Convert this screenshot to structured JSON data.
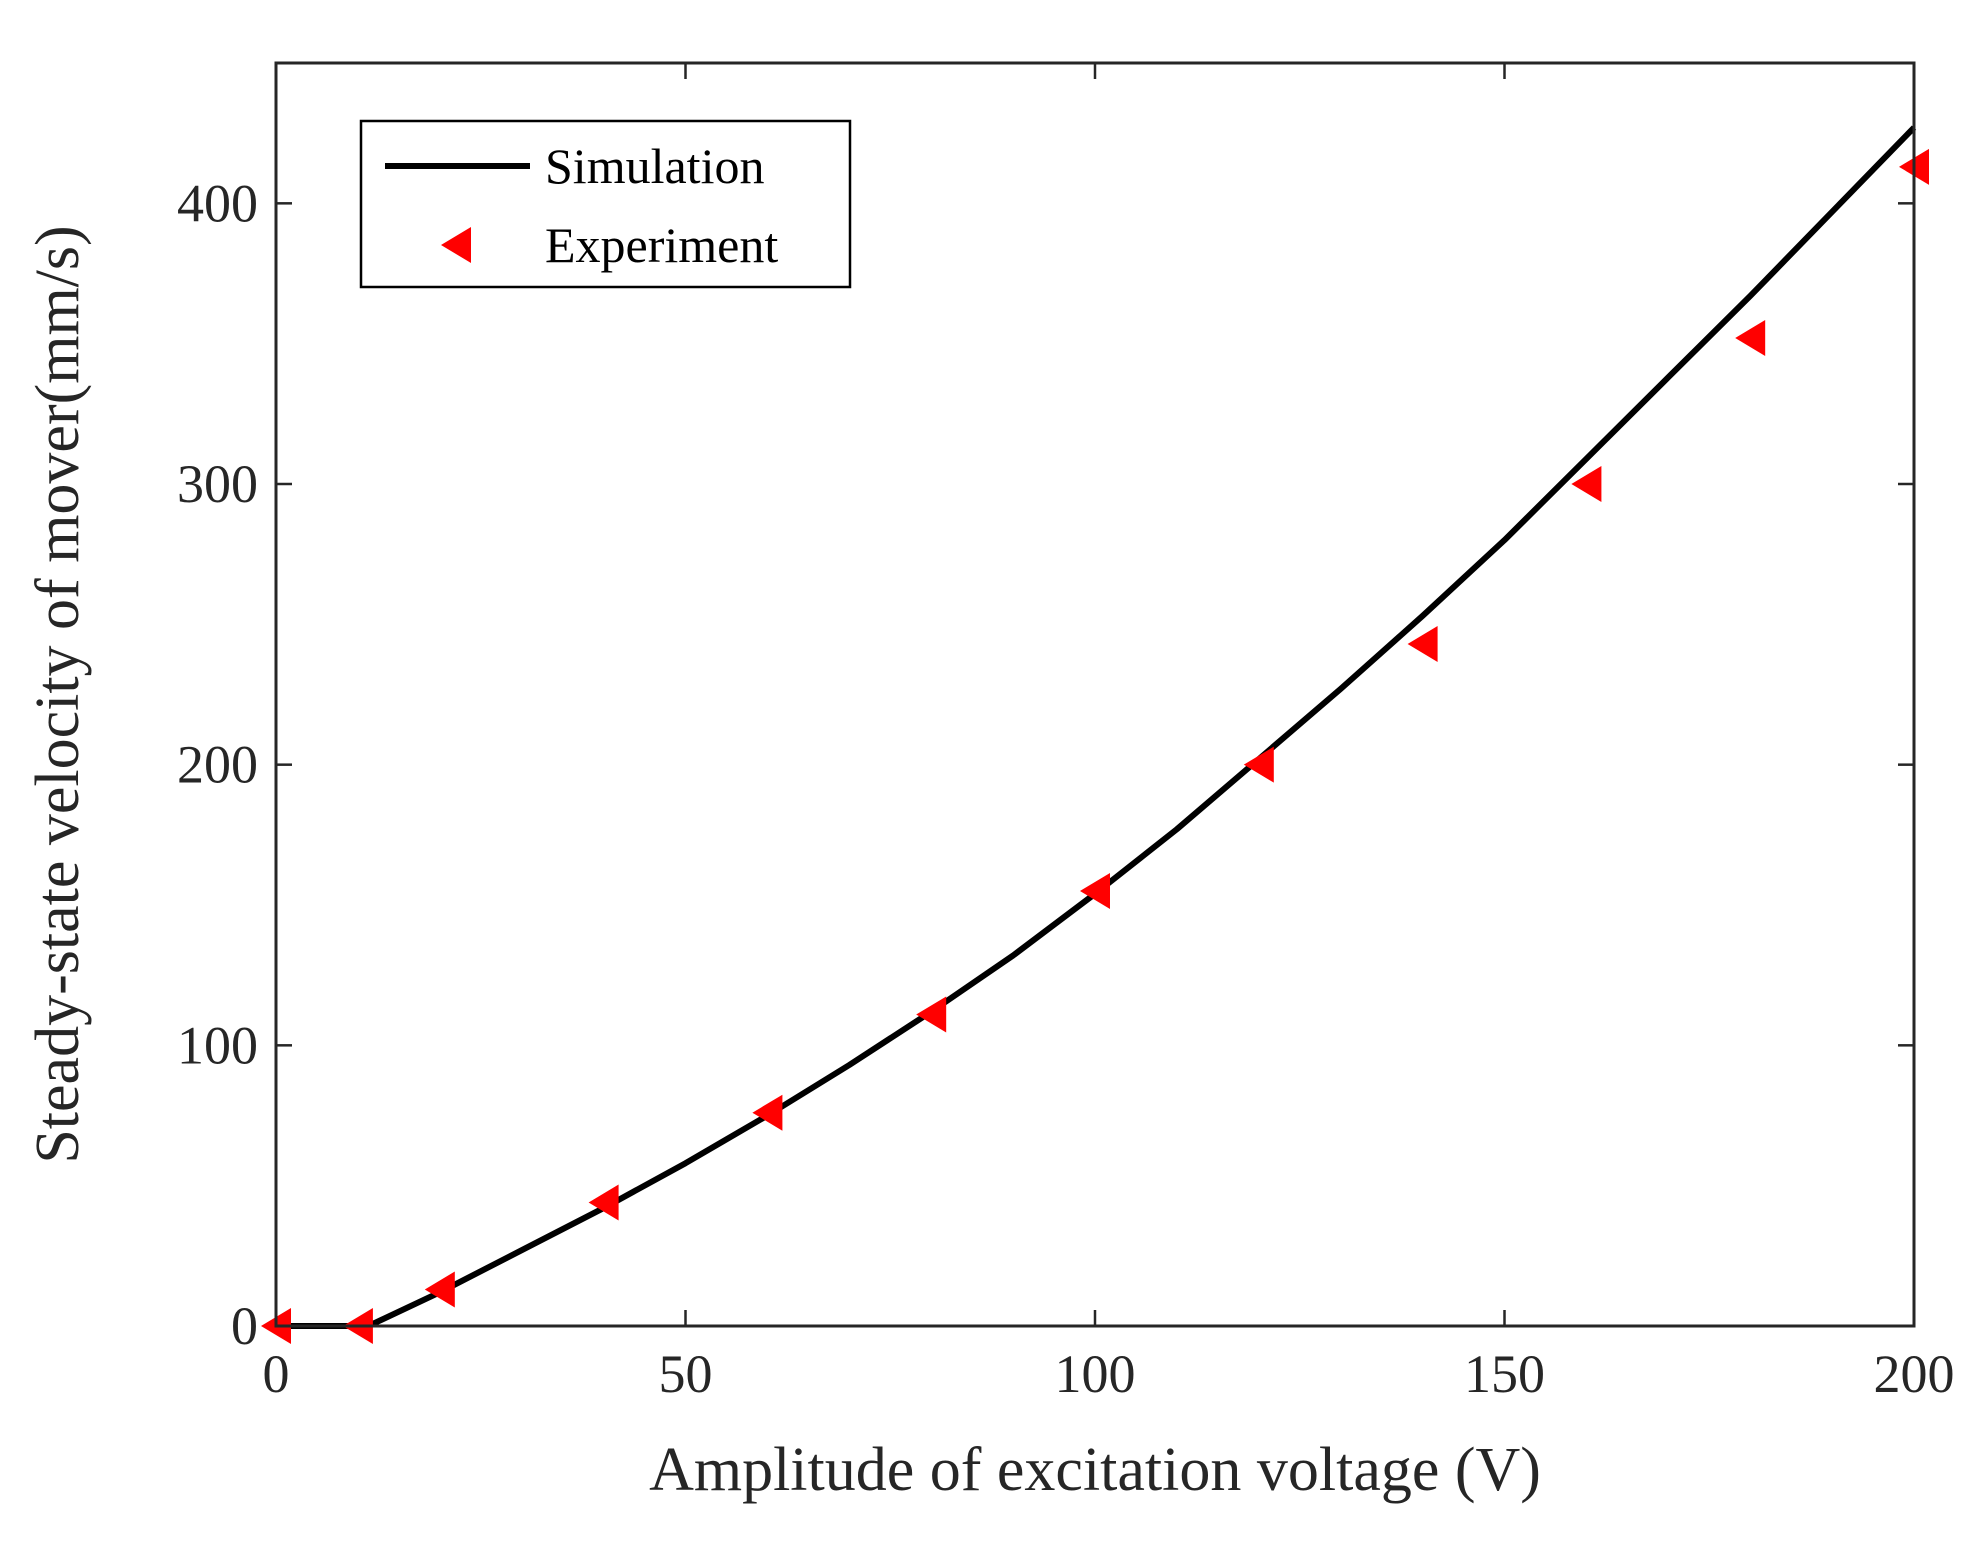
{
  "chart_data": {
    "type": "line",
    "title": "",
    "xlabel": "Amplitude of excitation voltage (V)",
    "ylabel": "Steady-state velocity of mover(mm/s)",
    "xlim": [
      0,
      200
    ],
    "ylim": [
      0,
      450
    ],
    "xticks": [
      0,
      50,
      100,
      150,
      200
    ],
    "yticks": [
      0,
      100,
      200,
      300,
      400
    ],
    "legend_position": "top-left",
    "series": [
      {
        "name": "Simulation",
        "style": "line",
        "color": "#000000",
        "x": [
          0,
          10,
          12,
          20,
          30,
          40,
          50,
          60,
          70,
          80,
          90,
          100,
          110,
          120,
          130,
          140,
          150,
          160,
          170,
          180,
          190,
          200
        ],
        "y": [
          0,
          0,
          1,
          12,
          27,
          42,
          58,
          75,
          93,
          112,
          132,
          154,
          177,
          202,
          227,
          253,
          280,
          309,
          338,
          367,
          397,
          427
        ]
      },
      {
        "name": "Experiment",
        "style": "marker-triangle-left",
        "color": "#ff0000",
        "x": [
          0,
          10,
          20,
          40,
          60,
          80,
          100,
          120,
          140,
          160,
          180,
          200
        ],
        "y": [
          0,
          0,
          13,
          44,
          76,
          111,
          155,
          200,
          243,
          300,
          352,
          413
        ]
      }
    ]
  }
}
